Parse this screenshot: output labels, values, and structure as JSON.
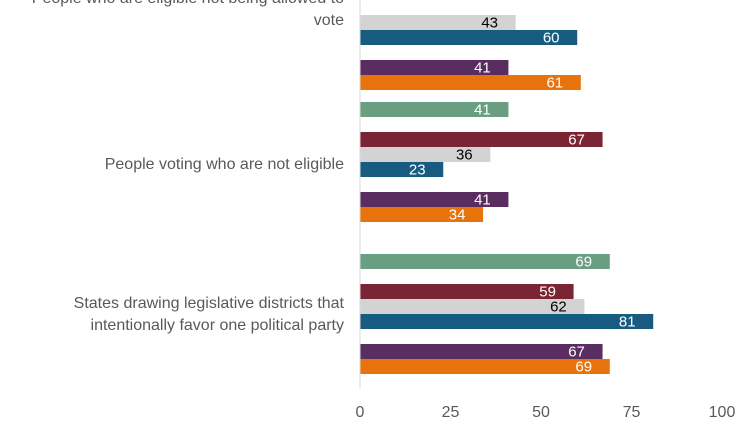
{
  "chart_data": {
    "type": "bar",
    "orientation": "horizontal",
    "categories": [
      "People who are eligible not being allowed to vote",
      "People voting who are not eligible",
      "States drawing legislative districts that intentionally favor one political party"
    ],
    "category_label_lines": [
      [
        "People who are eligible not being allowed to",
        "vote"
      ],
      [
        "People voting who are not eligible"
      ],
      [
        "States drawing legislative districts that",
        "intentionally favor one political party"
      ]
    ],
    "series": [
      {
        "color": "#6a9e80",
        "label_color": "#ffffff",
        "values": [
          null,
          41,
          69
        ]
      },
      {
        "color": "#7b2433",
        "label_color": "#ffffff",
        "values": [
          null,
          67,
          59
        ]
      },
      {
        "color": "#d3d3d3",
        "label_color": "#000000",
        "values": [
          43,
          36,
          62
        ]
      },
      {
        "color": "#175c80",
        "label_color": "#ffffff",
        "values": [
          60,
          23,
          81
        ]
      },
      {
        "color": "#5a2d60",
        "label_color": "#ffffff",
        "values": [
          41,
          41,
          67
        ]
      },
      {
        "color": "#e8720c",
        "label_color": "#ffffff",
        "values": [
          61,
          34,
          69
        ]
      }
    ],
    "xlim": [
      0,
      100
    ],
    "x_ticks": [
      "0",
      "25",
      "50",
      "75",
      "100"
    ],
    "grid": false,
    "title": "",
    "xlabel": "",
    "ylabel": ""
  }
}
